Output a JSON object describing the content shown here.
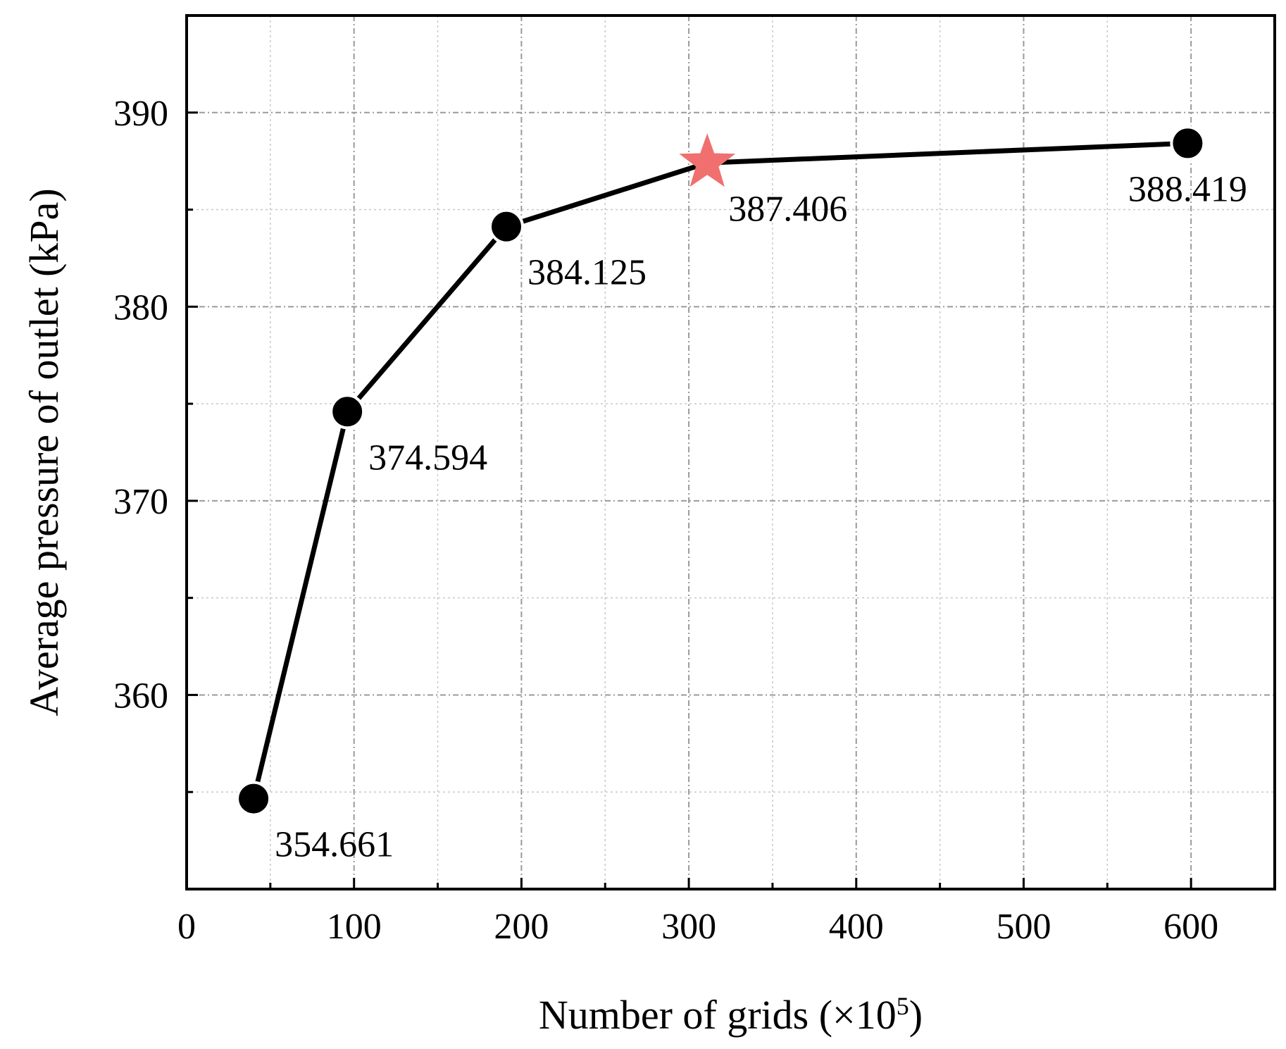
{
  "chart_data": {
    "type": "line",
    "title": "",
    "xlabel": "Number of grids (×10",
    "xlabel_sup": "5",
    "xlabel_end": ")",
    "ylabel": "Average pressure of outlet (kPa)",
    "xlim": [
      0,
      650
    ],
    "ylim": [
      350,
      395
    ],
    "x_ticks": [
      0,
      100,
      200,
      300,
      400,
      500,
      600
    ],
    "x_tick_labels": [
      "0",
      "100",
      "200",
      "300",
      "400",
      "500",
      "600"
    ],
    "y_ticks": [
      360,
      370,
      380,
      390
    ],
    "y_tick_labels": [
      "360",
      "370",
      "380",
      "390"
    ],
    "grid": true,
    "series": [
      {
        "x": [
          40,
          96,
          191,
          311,
          598
        ],
        "y": [
          354.661,
          374.594,
          384.125,
          387.406,
          388.419
        ],
        "labels": [
          "354.661",
          "374.594",
          "384.125",
          "387.406",
          "388.419"
        ],
        "marker": "circle",
        "highlight_index": 3,
        "highlight_marker": "star"
      }
    ],
    "colors": {
      "line": "#000000",
      "marker": "#000000",
      "highlight": "#f07070",
      "grid": "#9a9a9a"
    }
  }
}
